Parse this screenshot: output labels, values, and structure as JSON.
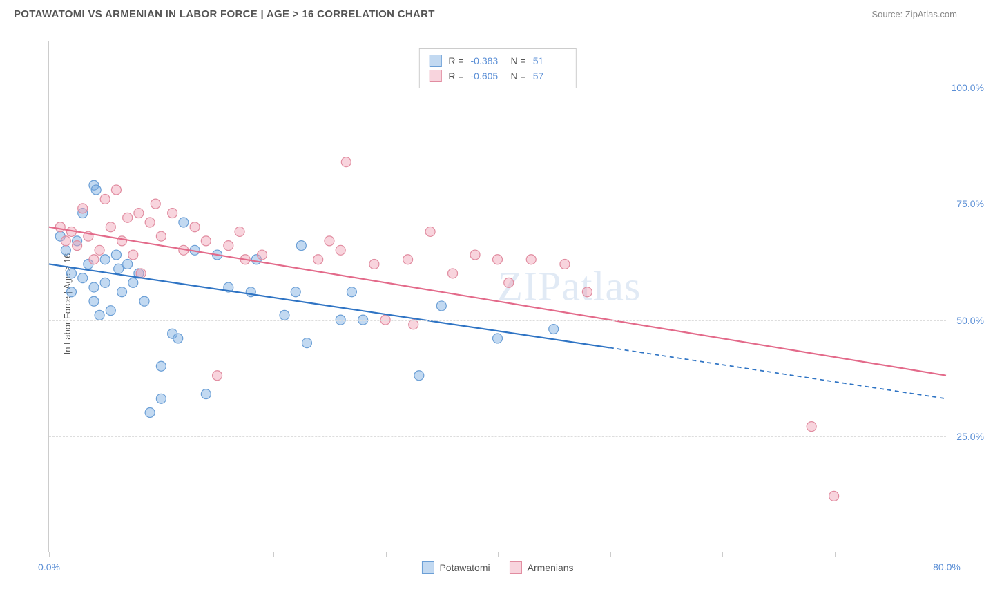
{
  "header": {
    "title": "POTAWATOMI VS ARMENIAN IN LABOR FORCE | AGE > 16 CORRELATION CHART",
    "source_label": "Source: ",
    "source_value": "ZipAtlas.com"
  },
  "chart": {
    "type": "scatter",
    "y_axis_label": "In Labor Force | Age > 16",
    "xlim": [
      0,
      80
    ],
    "ylim": [
      0,
      110
    ],
    "y_ticks": [
      25,
      50,
      75,
      100
    ],
    "y_tick_labels": [
      "25.0%",
      "50.0%",
      "75.0%",
      "100.0%"
    ],
    "x_ticks": [
      0,
      10,
      20,
      30,
      40,
      50,
      60,
      70,
      80
    ],
    "x_tick_labels_shown": {
      "0": "0.0%",
      "80": "80.0%"
    },
    "background_color": "#ffffff",
    "grid_color": "#dddddd",
    "axis_color": "#cccccc",
    "tick_label_color": "#5b8fd6",
    "marker_radius": 7,
    "marker_stroke_width": 1.2,
    "line_width": 2.2,
    "series": [
      {
        "name": "Potawatomi",
        "fill_color": "rgba(120, 170, 225, 0.45)",
        "stroke_color": "#6b9fd6",
        "line_color": "#2f74c4",
        "correlation_R": "-0.383",
        "correlation_N": "51",
        "trend_line": {
          "x1": 0,
          "y1": 62,
          "x2": 50,
          "y2": 44,
          "dash_from_x": 50,
          "dash_to_x": 80,
          "dash_to_y": 33
        },
        "points": [
          [
            1,
            68
          ],
          [
            1.5,
            65
          ],
          [
            2,
            60
          ],
          [
            2,
            56
          ],
          [
            2.5,
            67
          ],
          [
            3,
            73
          ],
          [
            3,
            59
          ],
          [
            3.5,
            62
          ],
          [
            4,
            79
          ],
          [
            4.2,
            78
          ],
          [
            4,
            57
          ],
          [
            4,
            54
          ],
          [
            4.5,
            51
          ],
          [
            5,
            63
          ],
          [
            5,
            58
          ],
          [
            5.5,
            52
          ],
          [
            6,
            64
          ],
          [
            6.2,
            61
          ],
          [
            6.5,
            56
          ],
          [
            7,
            62
          ],
          [
            7.5,
            58
          ],
          [
            8,
            60
          ],
          [
            8.5,
            54
          ],
          [
            9,
            30
          ],
          [
            10,
            40
          ],
          [
            10,
            33
          ],
          [
            11,
            47
          ],
          [
            11.5,
            46
          ],
          [
            12,
            71
          ],
          [
            13,
            65
          ],
          [
            14,
            34
          ],
          [
            15,
            64
          ],
          [
            16,
            57
          ],
          [
            18,
            56
          ],
          [
            18.5,
            63
          ],
          [
            21,
            51
          ],
          [
            22,
            56
          ],
          [
            22.5,
            66
          ],
          [
            23,
            45
          ],
          [
            26,
            50
          ],
          [
            27,
            56
          ],
          [
            28,
            50
          ],
          [
            33,
            38
          ],
          [
            35,
            53
          ],
          [
            40,
            46
          ],
          [
            45,
            48
          ]
        ]
      },
      {
        "name": "Armenians",
        "fill_color": "rgba(240, 160, 180, 0.45)",
        "stroke_color": "#e18ca0",
        "line_color": "#e36a8a",
        "correlation_R": "-0.605",
        "correlation_N": "57",
        "trend_line": {
          "x1": 0,
          "y1": 70,
          "x2": 80,
          "y2": 38,
          "dash_from_x": 80,
          "dash_to_x": 80,
          "dash_to_y": 38
        },
        "points": [
          [
            1,
            70
          ],
          [
            1.5,
            67
          ],
          [
            2,
            69
          ],
          [
            2.5,
            66
          ],
          [
            3,
            74
          ],
          [
            3.5,
            68
          ],
          [
            4,
            63
          ],
          [
            4.5,
            65
          ],
          [
            5,
            76
          ],
          [
            5.5,
            70
          ],
          [
            6,
            78
          ],
          [
            6.5,
            67
          ],
          [
            7,
            72
          ],
          [
            7.5,
            64
          ],
          [
            8,
            73
          ],
          [
            8.2,
            60
          ],
          [
            9,
            71
          ],
          [
            9.5,
            75
          ],
          [
            10,
            68
          ],
          [
            11,
            73
          ],
          [
            12,
            65
          ],
          [
            13,
            70
          ],
          [
            14,
            67
          ],
          [
            15,
            38
          ],
          [
            16,
            66
          ],
          [
            17,
            69
          ],
          [
            17.5,
            63
          ],
          [
            19,
            64
          ],
          [
            24,
            63
          ],
          [
            25,
            67
          ],
          [
            26,
            65
          ],
          [
            26.5,
            84
          ],
          [
            29,
            62
          ],
          [
            30,
            50
          ],
          [
            32,
            63
          ],
          [
            32.5,
            49
          ],
          [
            34,
            69
          ],
          [
            36,
            60
          ],
          [
            38,
            64
          ],
          [
            40,
            63
          ],
          [
            41,
            58
          ],
          [
            43,
            63
          ],
          [
            46,
            62
          ],
          [
            48,
            56
          ],
          [
            68,
            27
          ],
          [
            70,
            12
          ]
        ]
      }
    ],
    "top_legend": {
      "r_label": "R = ",
      "n_label": "N = "
    },
    "bottom_legend_labels": [
      "Potawatomi",
      "Armenians"
    ],
    "watermark": "ZIPatlas"
  }
}
